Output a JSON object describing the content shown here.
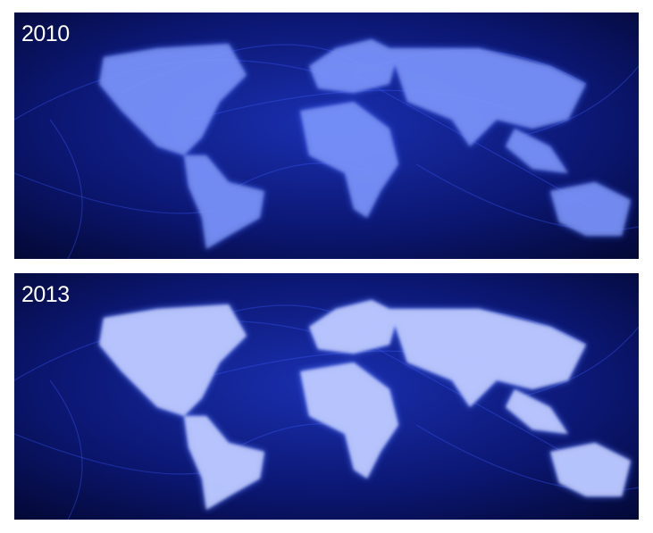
{
  "panels": [
    {
      "label": "2010"
    },
    {
      "label": "2013"
    }
  ]
}
